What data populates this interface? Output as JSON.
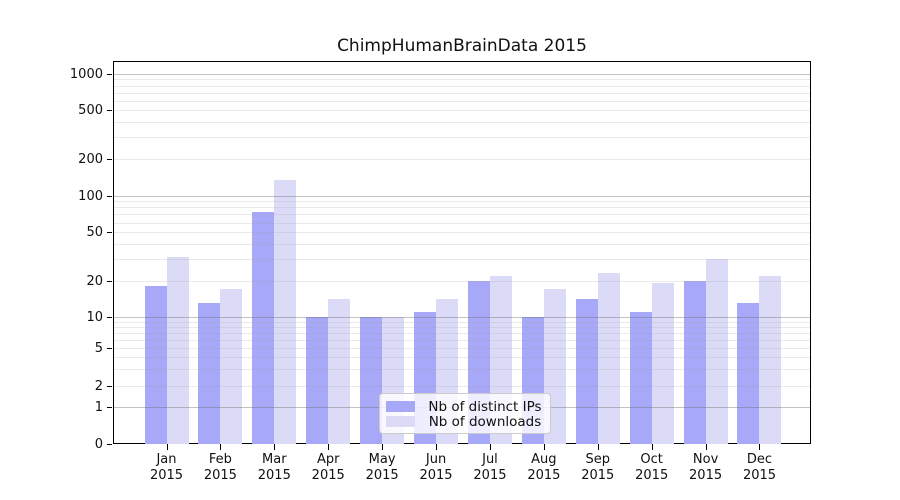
{
  "title": "ChimpHumanBrainData 2015",
  "colors": {
    "ips_bar": "#a8a8f8",
    "downloads_bar": "#dbdbf8",
    "axis": "#000000",
    "legend_border": "#cccccc"
  },
  "y_axis": {
    "tick_labels": [
      "1000",
      "500",
      "200",
      "100",
      "50",
      "20",
      "10",
      "5",
      "2",
      "1",
      "0"
    ],
    "tick_values": [
      1000,
      500,
      200,
      100,
      50,
      20,
      10,
      5,
      2,
      1,
      0
    ]
  },
  "x_axis": {
    "months": [
      "Jan",
      "Feb",
      "Mar",
      "Apr",
      "May",
      "Jun",
      "Jul",
      "Aug",
      "Sep",
      "Oct",
      "Nov",
      "Dec"
    ],
    "year": "2015"
  },
  "legend": {
    "entries": [
      {
        "label": "Nb of distinct IPs",
        "color": "#a8a8f8"
      },
      {
        "label": "Nb of downloads",
        "color": "#dbdbf8"
      }
    ]
  },
  "chart_data": {
    "type": "bar",
    "title": "ChimpHumanBrainData 2015",
    "categories": [
      "Jan 2015",
      "Feb 2015",
      "Mar 2015",
      "Apr 2015",
      "May 2015",
      "Jun 2015",
      "Jul 2015",
      "Aug 2015",
      "Sep 2015",
      "Oct 2015",
      "Nov 2015",
      "Dec 2015"
    ],
    "series": [
      {
        "name": "Nb of distinct IPs",
        "color": "#a8a8f8",
        "values": [
          18,
          13,
          73,
          10,
          10,
          11,
          20,
          10,
          14,
          11,
          20,
          13
        ]
      },
      {
        "name": "Nb of downloads",
        "color": "#dbdbf8",
        "values": [
          31,
          17,
          135,
          14,
          10,
          14,
          22,
          17,
          23,
          19,
          30,
          22
        ]
      }
    ],
    "yscale": "symlog",
    "yticks": [
      0,
      1,
      2,
      5,
      10,
      20,
      50,
      100,
      200,
      500,
      1000
    ],
    "minor_gridlines": [
      2,
      3,
      4,
      5,
      6,
      7,
      8,
      9,
      20,
      30,
      40,
      50,
      60,
      70,
      80,
      90,
      200,
      300,
      400,
      500,
      600,
      700,
      800,
      900
    ],
    "major_gridlines": [
      1,
      10,
      100,
      1000
    ],
    "ylim": [
      0,
      1270
    ],
    "grid": true,
    "legend_position": "lower center"
  }
}
